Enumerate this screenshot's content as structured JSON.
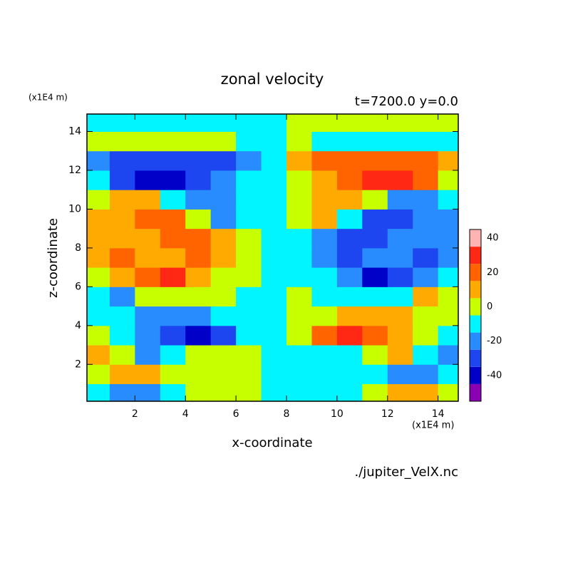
{
  "chart_data": {
    "type": "contour",
    "title": "zonal velocity",
    "subtitle": "t=7200.0 y=0.0",
    "x_label": "x-coordinate",
    "y_label": "z-coordinate",
    "x_units": "(x1E4 m)",
    "y_units": "(x1E4 m)",
    "source": "./jupiter_VelX.nc",
    "xlim": [
      0.1,
      14.8
    ],
    "ylim": [
      0.1,
      14.9
    ],
    "xticks": [
      2,
      4,
      6,
      8,
      10,
      12,
      14
    ],
    "yticks": [
      2,
      4,
      6,
      8,
      10,
      12,
      14
    ],
    "x": [
      0.5,
      1.5,
      2.5,
      3.5,
      4.5,
      5.5,
      6.5,
      7.5,
      8.5,
      9.5,
      10.5,
      11.5,
      12.5,
      13.5,
      14.5
    ],
    "y": [
      0.5,
      1.5,
      2.5,
      3.5,
      4.5,
      5.5,
      6.5,
      7.5,
      8.5,
      9.5,
      10.5,
      11.5,
      12.5,
      13.5,
      14.5
    ],
    "z": [
      [
        -5,
        -15,
        -15,
        -5,
        5,
        5,
        5,
        -5,
        -5,
        -5,
        -5,
        5,
        15,
        15,
        5
      ],
      [
        5,
        15,
        15,
        5,
        5,
        5,
        5,
        -5,
        -5,
        -5,
        -5,
        -5,
        -15,
        -15,
        -5
      ],
      [
        15,
        5,
        -15,
        -5,
        5,
        5,
        5,
        -5,
        -5,
        -5,
        -5,
        5,
        15,
        -5,
        -15
      ],
      [
        5,
        -5,
        -15,
        -25,
        -35,
        -25,
        -5,
        -5,
        5,
        25,
        35,
        25,
        15,
        5,
        -5
      ],
      [
        -5,
        -5,
        -15,
        -15,
        -15,
        -5,
        -5,
        -5,
        5,
        5,
        15,
        15,
        15,
        5,
        5
      ],
      [
        -5,
        -15,
        5,
        5,
        5,
        5,
        -5,
        -5,
        5,
        -5,
        -5,
        -5,
        -5,
        15,
        5
      ],
      [
        5,
        15,
        25,
        35,
        15,
        5,
        5,
        -5,
        -5,
        -5,
        -15,
        -35,
        -25,
        -15,
        -5
      ],
      [
        15,
        25,
        15,
        15,
        25,
        15,
        5,
        -5,
        -5,
        -15,
        -25,
        -15,
        -15,
        -25,
        -15
      ],
      [
        15,
        15,
        15,
        25,
        25,
        15,
        5,
        -5,
        -5,
        -15,
        -25,
        -25,
        -15,
        -15,
        -15
      ],
      [
        15,
        15,
        25,
        25,
        5,
        -15,
        -5,
        -5,
        5,
        15,
        -5,
        -25,
        -25,
        -15,
        -15
      ],
      [
        5,
        15,
        15,
        -5,
        -15,
        -15,
        -5,
        -5,
        5,
        15,
        15,
        5,
        -15,
        -15,
        -5
      ],
      [
        -5,
        -25,
        -35,
        -35,
        -25,
        -15,
        -5,
        -5,
        5,
        15,
        25,
        35,
        35,
        25,
        5
      ],
      [
        -15,
        -25,
        -25,
        -25,
        -25,
        -25,
        -15,
        -5,
        15,
        25,
        25,
        25,
        25,
        25,
        15
      ],
      [
        5,
        5,
        5,
        5,
        5,
        5,
        -5,
        -5,
        5,
        -5,
        -5,
        -5,
        -5,
        -5,
        -5
      ],
      [
        -5,
        -5,
        -5,
        -5,
        -5,
        -5,
        -5,
        -5,
        5,
        5,
        5,
        5,
        5,
        5,
        5
      ]
    ],
    "levels": [
      -50,
      -40,
      -30,
      -20,
      -10,
      0,
      10,
      20,
      30,
      40,
      50
    ],
    "colors": [
      "#8c00b4",
      "#0000c8",
      "#1e46f0",
      "#288cff",
      "#00f5ff",
      "#c8ff00",
      "#ffaa00",
      "#ff6400",
      "#ff2814",
      "#ffb4b4"
    ],
    "colorbar_ticks": [
      -40,
      -20,
      0,
      20,
      40
    ]
  }
}
